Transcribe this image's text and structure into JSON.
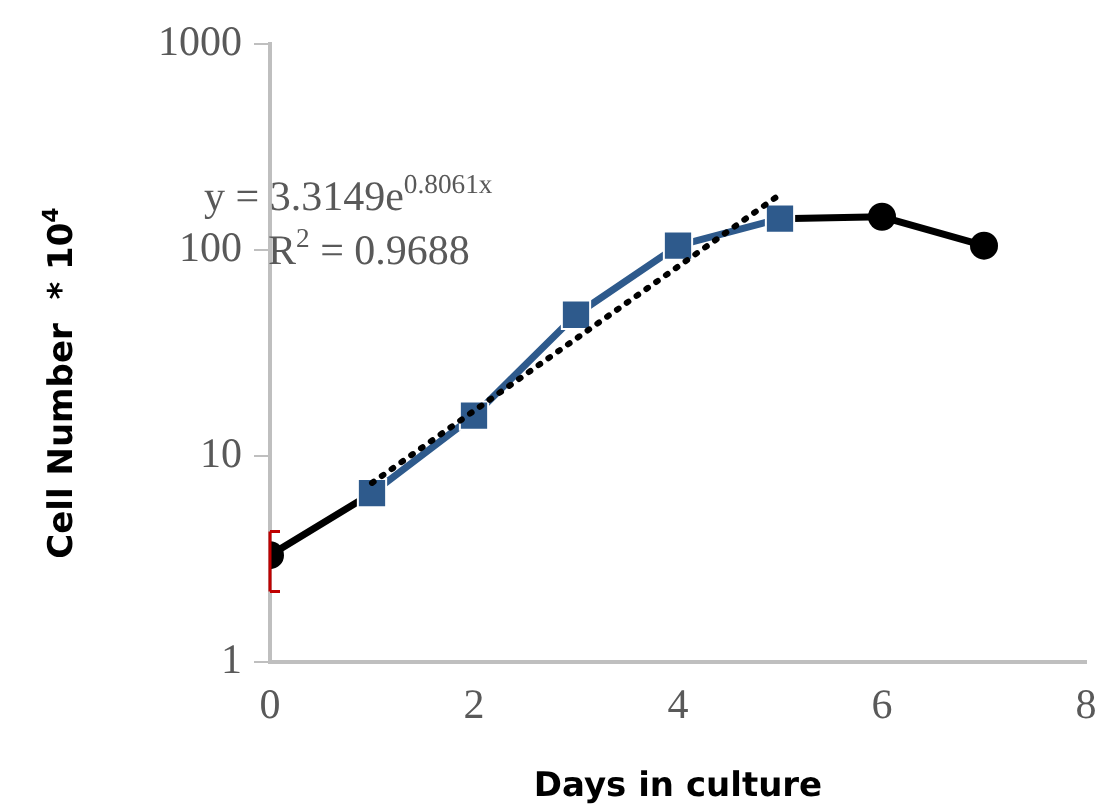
{
  "chart_data": {
    "type": "line",
    "xlabel": "Days in culture",
    "ylabel": "Cell Number  * 10$^{4}$",
    "log": "y",
    "grid": false,
    "legend": false,
    "xlim": [
      0,
      8
    ],
    "xticks": [
      0,
      2,
      4,
      6,
      8
    ],
    "ylim": [
      1,
      1000
    ],
    "yticks": [
      1,
      10,
      100,
      1000
    ],
    "annotations": [
      "y = 3.3149e$^{0.8061x}$",
      "R$^{2}$ = 0.9688"
    ],
    "series": [
      {
        "type": "line",
        "color": "#000000",
        "marker": "circle",
        "x": [
          0,
          1,
          2,
          3,
          4,
          5,
          6,
          7
        ],
        "values": [
          3.3,
          6.6,
          null,
          null,
          null,
          142,
          145,
          105
        ],
        "errors": [
          [
            2.2,
            4.3
          ],
          null,
          null,
          null,
          null,
          null,
          null,
          null
        ]
      },
      {
        "type": "line",
        "color": "#2e5a8c",
        "marker": "square",
        "x": [
          1,
          2,
          3,
          4,
          5
        ],
        "values": [
          6.6,
          15.7,
          48.5,
          105,
          142
        ]
      },
      {
        "type": "line",
        "color": "#000000",
        "marker": "none",
        "line_style": "dotted",
        "x": [
          1,
          5
        ],
        "values": [
          7.4,
          186
        ]
      }
    ]
  }
}
